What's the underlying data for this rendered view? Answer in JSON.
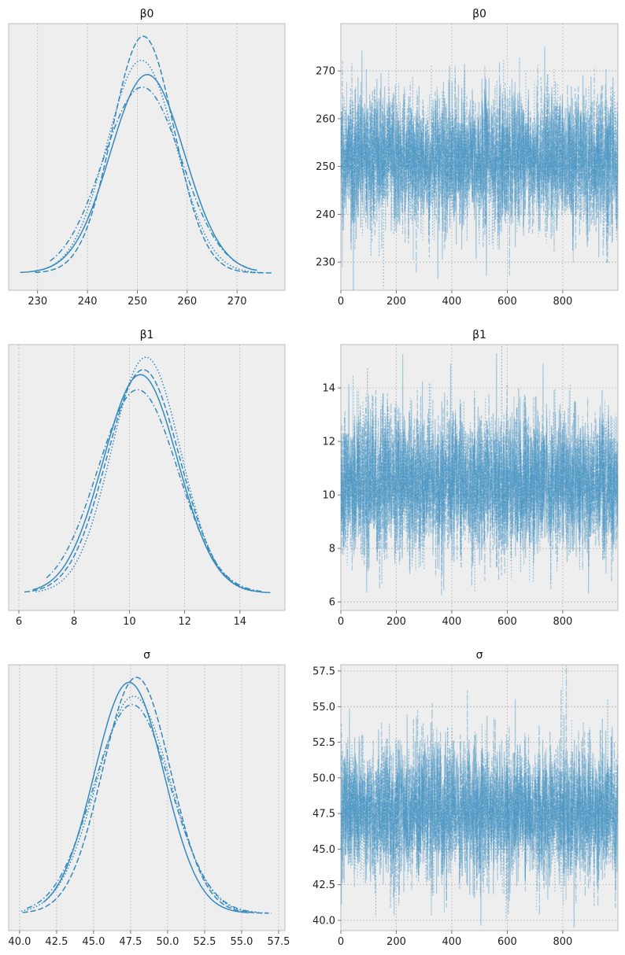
{
  "colors": {
    "line": "#348ABD",
    "panel_bg": "#EEEEEE",
    "grid": "#B2B2B2",
    "frame": "#BCBCBC"
  },
  "chart_data": [
    {
      "type": "line",
      "kind": "kde",
      "title": "β0",
      "xlim": [
        224.2,
        279.6
      ],
      "xticks": [
        230,
        240,
        250,
        260,
        270
      ],
      "grid": "x",
      "chains": [
        {
          "style": "solid",
          "mean": 252.0,
          "sd": 7.4,
          "range": [
            226.5,
            273.5
          ]
        },
        {
          "style": "dashed",
          "mean": 251.2,
          "sd": 6.2,
          "range": [
            229.5,
            277.0
          ]
        },
        {
          "style": "dotted",
          "mean": 250.8,
          "sd": 6.9,
          "range": [
            229.5,
            275.0
          ]
        },
        {
          "style": "dashdot",
          "mean": 251.0,
          "sd": 7.9,
          "range": [
            232.5,
            274.0
          ]
        }
      ]
    },
    {
      "type": "line",
      "kind": "trace",
      "title": "β0",
      "xlim": [
        0,
        999
      ],
      "ylim": [
        224.1,
        279.9
      ],
      "xticks": [
        0,
        200,
        400,
        600,
        800
      ],
      "yticks": [
        230,
        240,
        250,
        260,
        270
      ],
      "n_draws": 1000,
      "chain_mean": 251.5,
      "chain_sd": 7.2,
      "chains": 4
    },
    {
      "type": "line",
      "kind": "kde",
      "title": "β1",
      "xlim": [
        5.63,
        15.63
      ],
      "xticks": [
        6,
        8,
        10,
        12,
        14
      ],
      "grid": "x",
      "chains": [
        {
          "style": "solid",
          "mean": 10.4,
          "sd": 1.35,
          "range": [
            6.5,
            15.1
          ]
        },
        {
          "style": "dashed",
          "mean": 10.5,
          "sd": 1.32,
          "range": [
            6.2,
            14.8
          ]
        },
        {
          "style": "dotted",
          "mean": 10.6,
          "sd": 1.25,
          "range": [
            6.6,
            14.5
          ]
        },
        {
          "style": "dashdot",
          "mean": 10.3,
          "sd": 1.45,
          "range": [
            7.0,
            14.8
          ]
        }
      ]
    },
    {
      "type": "line",
      "kind": "trace",
      "title": "β1",
      "xlim": [
        0,
        999
      ],
      "ylim": [
        5.68,
        15.62
      ],
      "xticks": [
        0,
        200,
        400,
        600,
        800
      ],
      "yticks": [
        6,
        8,
        10,
        12,
        14
      ],
      "n_draws": 1000,
      "chain_mean": 10.45,
      "chain_sd": 1.35,
      "chains": 4
    },
    {
      "type": "line",
      "kind": "kde",
      "title": "σ",
      "xlim": [
        39.26,
        57.93
      ],
      "xticks": [
        40.0,
        42.5,
        45.0,
        47.5,
        50.0,
        52.5,
        55.0,
        57.5
      ],
      "tick_labels": [
        "40.0",
        "42.5",
        "45.0",
        "47.5",
        "50.0",
        "52.5",
        "55.0",
        "57.5"
      ],
      "grid": "x",
      "chains": [
        {
          "style": "solid",
          "mean": 47.4,
          "sd": 2.35,
          "range": [
            41.6,
            55.5
          ]
        },
        {
          "style": "dashed",
          "mean": 47.9,
          "sd": 2.3,
          "range": [
            40.2,
            56.8
          ]
        },
        {
          "style": "dotted",
          "mean": 47.7,
          "sd": 2.5,
          "range": [
            40.1,
            57.0
          ]
        },
        {
          "style": "dashdot",
          "mean": 47.6,
          "sd": 2.6,
          "range": [
            40.5,
            56.0
          ]
        }
      ]
    },
    {
      "type": "line",
      "kind": "trace",
      "title": "σ",
      "xlim": [
        0,
        999
      ],
      "ylim": [
        39.28,
        57.94
      ],
      "xticks": [
        0,
        200,
        400,
        600,
        800
      ],
      "yticks": [
        40.0,
        42.5,
        45.0,
        47.5,
        50.0,
        52.5,
        55.0,
        57.5
      ],
      "ytick_labels": [
        "40.0",
        "42.5",
        "45.0",
        "47.5",
        "50.0",
        "52.5",
        "55.0",
        "57.5"
      ],
      "n_draws": 1000,
      "chain_mean": 47.6,
      "chain_sd": 2.4,
      "chains": 4
    }
  ]
}
